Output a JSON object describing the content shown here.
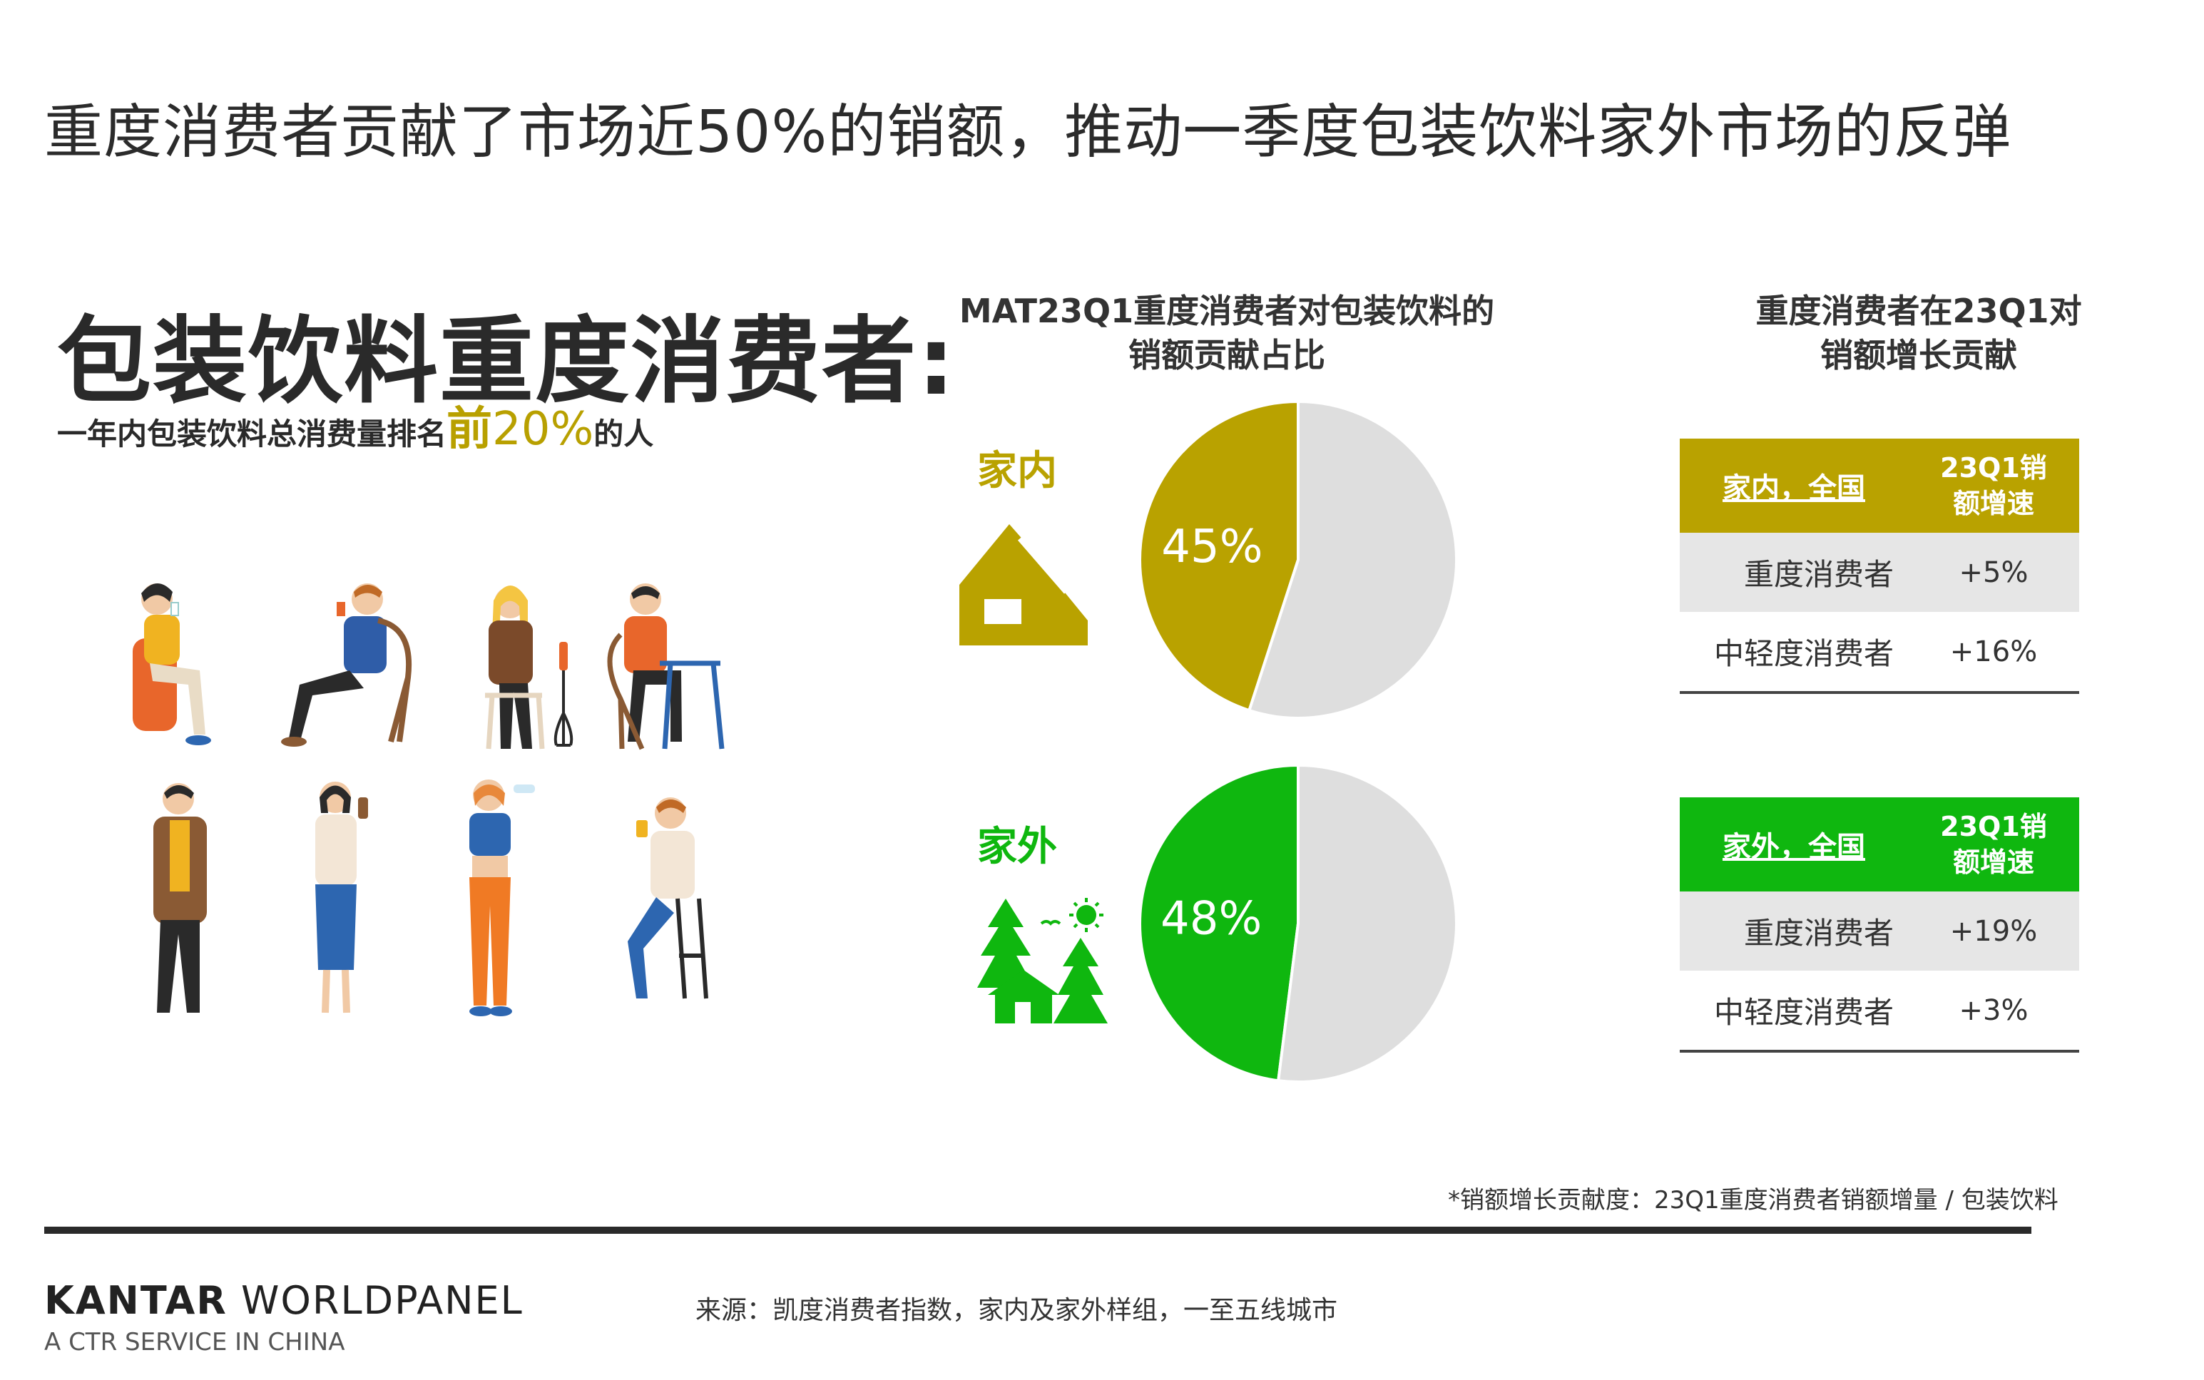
{
  "header": {
    "title": "重度消费者贡献了市场近50%的销额，推动一季度包装饮料家外市场的反弹"
  },
  "hero": {
    "title": "包装饮料重度消费者:",
    "sub_prefix": "一年内包装饮料总消费量排名",
    "sub_big": "前",
    "sub_pct": "20%",
    "sub_suffix": "的人"
  },
  "chart_title": {
    "line1": "MAT23Q1重度消费者对包装饮料的",
    "line2": "销额贡献占比"
  },
  "right_title": {
    "line1": "重度消费者在23Q1对",
    "line2": "销额增长贡献"
  },
  "colors": {
    "home": "#b9a200",
    "away": "#0fb70f",
    "rest": "#dedede"
  },
  "chart_data": {
    "type": "pie",
    "charts": [
      {
        "label": "家内",
        "slices": [
          {
            "value": 45,
            "label": "45%"
          },
          {
            "value": 55
          }
        ]
      },
      {
        "label": "家外",
        "slices": [
          {
            "value": 48,
            "label": "48%"
          },
          {
            "value": 52
          }
        ]
      }
    ]
  },
  "tables": [
    {
      "header": "家内，全国",
      "col2_line1": "23Q1销",
      "col2_line2": "额增速",
      "rows": [
        {
          "name": "重度消费者",
          "value": "+5%"
        },
        {
          "name": "中轻度消费者",
          "value": "+16%"
        }
      ]
    },
    {
      "header": "家外，全国",
      "col2_line1": "23Q1销",
      "col2_line2": "额增速",
      "rows": [
        {
          "name": "重度消费者",
          "value": "+19%"
        },
        {
          "name": "中轻度消费者",
          "value": "+3%"
        }
      ]
    }
  ],
  "footnote": "*销额增长贡献度：23Q1重度消费者销额增量 / 包装饮料",
  "brand": {
    "name_bold": "KANTAR",
    "name_thin": " WORLDPANEL",
    "sub": "A CTR SERVICE IN CHINA"
  },
  "source": "来源：凯度消费者指数，家内及家外样组，一至五线城市"
}
